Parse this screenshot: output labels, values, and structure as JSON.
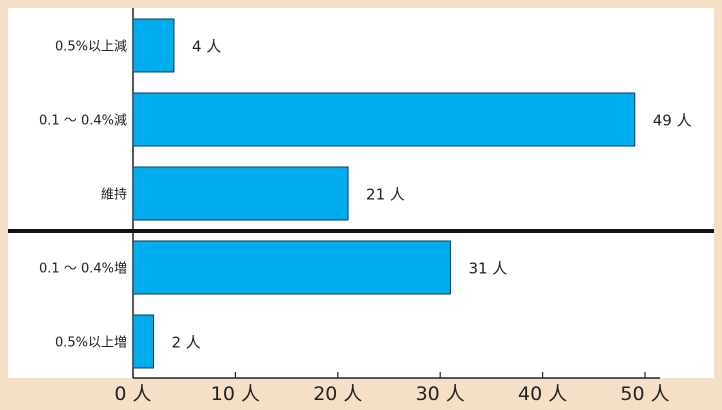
{
  "chart_data": {
    "type": "bar",
    "orientation": "horizontal",
    "categories": [
      "0.5%以上減",
      "0.1 ～ 0.4%減",
      "維持",
      "0.1 ～ 0.4%増",
      "0.5%以上増"
    ],
    "values": [
      4,
      49,
      21,
      31,
      2
    ],
    "data_labels": [
      "4 人",
      "49 人",
      "21 人",
      "31 人",
      "2 人"
    ],
    "x_ticks": [
      0,
      10,
      20,
      30,
      40,
      50
    ],
    "x_tick_labels": [
      "0 人",
      "10 人",
      "20 人",
      "30 人",
      "40 人",
      "50 人"
    ],
    "xlim": [
      0,
      50
    ],
    "grid": false,
    "separator_after_category": 2,
    "colors": {
      "bar_fill": "#00aeef",
      "bar_stroke": "#1a3550",
      "plot_background": "#ffffff",
      "page_background": "#f5dfc6",
      "axis": "#222222",
      "separator": "#111111",
      "text": "#222222"
    }
  }
}
